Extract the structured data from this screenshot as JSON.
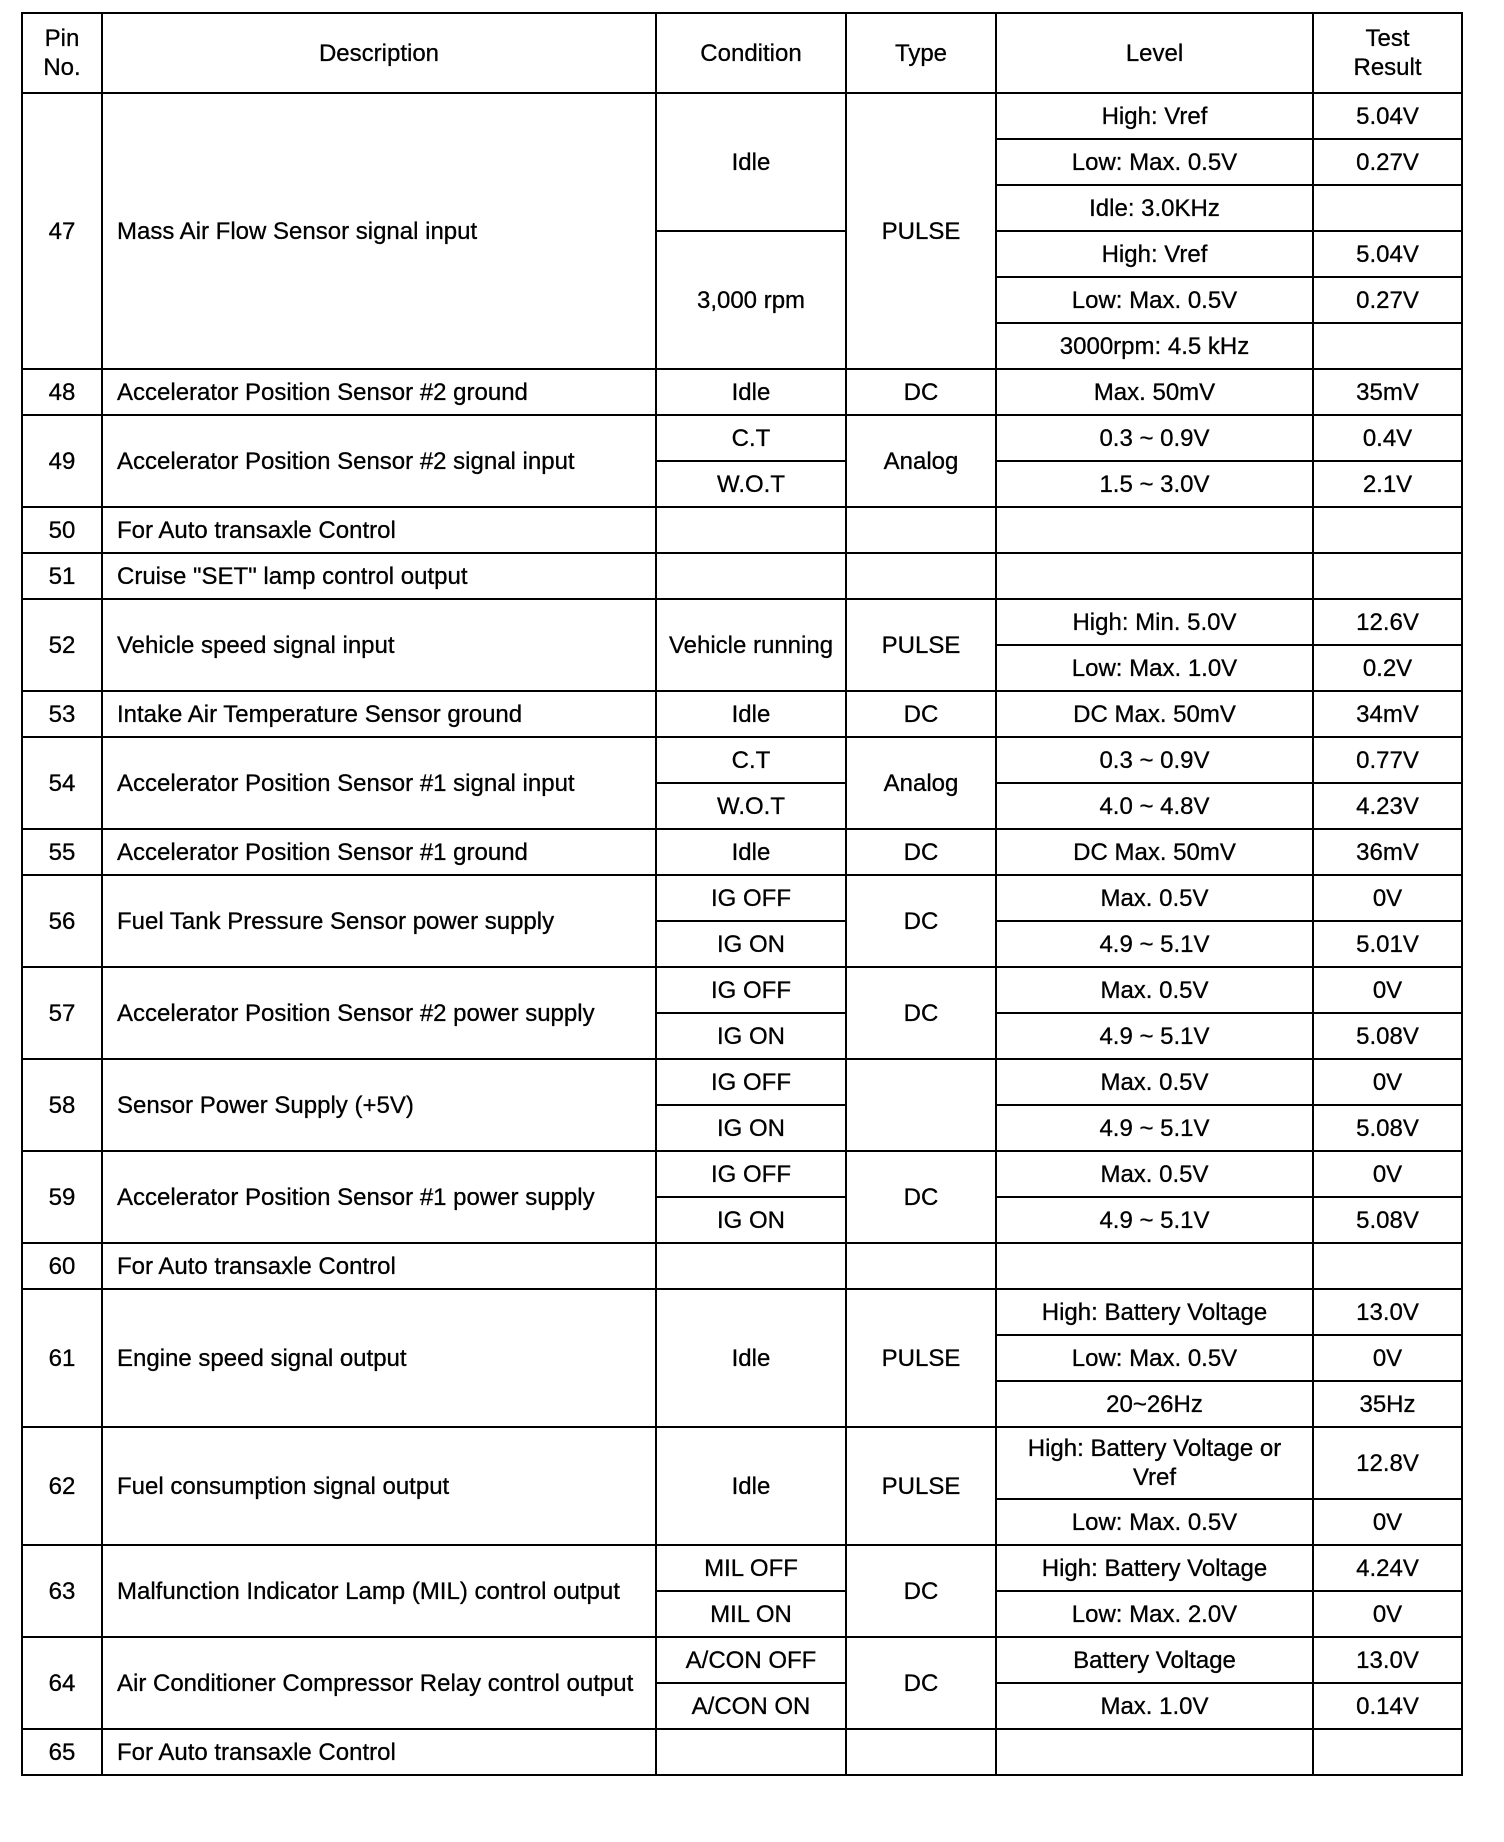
{
  "headers": {
    "pin": "Pin No.",
    "description": "Description",
    "condition": "Condition",
    "type": "Type",
    "level": "Level",
    "result": "Test Result"
  },
  "pins": [
    {
      "pin": "47",
      "description": "Mass Air Flow Sensor signal input",
      "type": "PULSE",
      "conditions": [
        {
          "text": "Idle",
          "rows": 3
        },
        {
          "text": "3,000 rpm",
          "rows": 3
        }
      ],
      "levels": [
        {
          "level": "High:  Vref",
          "result": "5.04V"
        },
        {
          "level": "Low:  Max.  0.5V",
          "result": "0.27V"
        },
        {
          "level": "Idle:  3.0KHz",
          "result": ""
        },
        {
          "level": "High:  Vref",
          "result": "5.04V"
        },
        {
          "level": "Low:  Max.  0.5V",
          "result": "0.27V"
        },
        {
          "level": "3000rpm:  4.5 kHz",
          "result": ""
        }
      ]
    },
    {
      "pin": "48",
      "description": "Accelerator Position Sensor #2 ground",
      "type": "DC",
      "conditions": [
        {
          "text": "Idle",
          "rows": 1
        }
      ],
      "levels": [
        {
          "level": "Max.  50mV",
          "result": "35mV"
        }
      ]
    },
    {
      "pin": "49",
      "description": "Accelerator Position Sensor #2 signal input",
      "type": "Analog",
      "conditions": [
        {
          "text": "C.T",
          "rows": 1
        },
        {
          "text": "W.O.T",
          "rows": 1
        }
      ],
      "levels": [
        {
          "level": "0.3 ~ 0.9V",
          "result": "0.4V"
        },
        {
          "level": "1.5 ~ 3.0V",
          "result": "2.1V"
        }
      ]
    },
    {
      "pin": "50",
      "description": "For Auto transaxle Control",
      "type": "",
      "conditions": [
        {
          "text": "",
          "rows": 1
        }
      ],
      "levels": [
        {
          "level": "",
          "result": ""
        }
      ]
    },
    {
      "pin": "51",
      "description": "Cruise \"SET\" lamp control output",
      "type": "",
      "conditions": [
        {
          "text": "",
          "rows": 1
        }
      ],
      "levels": [
        {
          "level": "",
          "result": ""
        }
      ]
    },
    {
      "pin": "52",
      "description": "Vehicle speed signal input",
      "type": "PULSE",
      "conditions": [
        {
          "text": "Vehicle running",
          "rows": 2
        }
      ],
      "levels": [
        {
          "level": "High:  Min.  5.0V",
          "result": "12.6V"
        },
        {
          "level": "Low:  Max.  1.0V",
          "result": "0.2V"
        }
      ]
    },
    {
      "pin": "53",
      "description": "Intake Air Temperature Sensor ground",
      "type": "DC",
      "conditions": [
        {
          "text": "Idle",
          "rows": 1
        }
      ],
      "levels": [
        {
          "level": "DC Max.  50mV",
          "result": "34mV"
        }
      ]
    },
    {
      "pin": "54",
      "description": "Accelerator Position Sensor #1 signal input",
      "type": "Analog",
      "conditions": [
        {
          "text": "C.T",
          "rows": 1
        },
        {
          "text": "W.O.T",
          "rows": 1
        }
      ],
      "levels": [
        {
          "level": "0.3 ~ 0.9V",
          "result": "0.77V"
        },
        {
          "level": "4.0 ~ 4.8V",
          "result": "4.23V"
        }
      ]
    },
    {
      "pin": "55",
      "description": "Accelerator Position Sensor #1 ground",
      "type": "DC",
      "conditions": [
        {
          "text": "Idle",
          "rows": 1
        }
      ],
      "levels": [
        {
          "level": "DC Max.  50mV",
          "result": "36mV"
        }
      ]
    },
    {
      "pin": "56",
      "description": "Fuel Tank Pressure Sensor power supply",
      "type": "DC",
      "conditions": [
        {
          "text": "IG OFF",
          "rows": 1
        },
        {
          "text": "IG ON",
          "rows": 1
        }
      ],
      "levels": [
        {
          "level": "Max.  0.5V",
          "result": "0V"
        },
        {
          "level": "4.9 ~ 5.1V",
          "result": "5.01V"
        }
      ]
    },
    {
      "pin": "57",
      "description": "Accelerator Position Sensor #2 power supply",
      "type": "DC",
      "conditions": [
        {
          "text": "IG OFF",
          "rows": 1
        },
        {
          "text": "IG ON",
          "rows": 1
        }
      ],
      "levels": [
        {
          "level": "Max.  0.5V",
          "result": "0V"
        },
        {
          "level": "4.9 ~ 5.1V",
          "result": "5.08V"
        }
      ]
    },
    {
      "pin": "58",
      "description": "Sensor Power Supply (+5V)",
      "type": "",
      "conditions": [
        {
          "text": "IG OFF",
          "rows": 1
        },
        {
          "text": "IG ON",
          "rows": 1
        }
      ],
      "levels": [
        {
          "level": "Max.  0.5V",
          "result": "0V"
        },
        {
          "level": "4.9 ~ 5.1V",
          "result": "5.08V"
        }
      ]
    },
    {
      "pin": "59",
      "description": "Accelerator Position Sensor #1 power supply",
      "type": "DC",
      "conditions": [
        {
          "text": "IG OFF",
          "rows": 1
        },
        {
          "text": "IG ON",
          "rows": 1
        }
      ],
      "levels": [
        {
          "level": "Max.  0.5V",
          "result": "0V"
        },
        {
          "level": "4.9 ~ 5.1V",
          "result": "5.08V"
        }
      ]
    },
    {
      "pin": "60",
      "description": "For Auto transaxle Control",
      "type": "",
      "conditions": [
        {
          "text": "",
          "rows": 1
        }
      ],
      "levels": [
        {
          "level": "",
          "result": ""
        }
      ]
    },
    {
      "pin": "61",
      "description": "Engine speed signal output",
      "type": "PULSE",
      "conditions": [
        {
          "text": "Idle",
          "rows": 3
        }
      ],
      "levels": [
        {
          "level": "High:  Battery Voltage",
          "result": "13.0V"
        },
        {
          "level": "Low:  Max.  0.5V",
          "result": "0V"
        },
        {
          "level": "20~26Hz",
          "result": "35Hz"
        }
      ]
    },
    {
      "pin": "62",
      "description": "Fuel consumption signal output",
      "type": "PULSE",
      "conditions": [
        {
          "text": "Idle",
          "rows": 2
        }
      ],
      "levels": [
        {
          "level": "High:  Battery Voltage or  Vref",
          "result": "12.8V",
          "tall": true
        },
        {
          "level": "Low:  Max.  0.5V",
          "result": "0V"
        }
      ]
    },
    {
      "pin": "63",
      "description": "Malfunction Indicator Lamp (MIL) control output",
      "type": "DC",
      "conditions": [
        {
          "text": "MIL OFF",
          "rows": 1
        },
        {
          "text": "MIL ON",
          "rows": 1
        }
      ],
      "levels": [
        {
          "level": "High:  Battery Voltage",
          "result": "4.24V"
        },
        {
          "level": "Low:  Max.  2.0V",
          "result": "0V"
        }
      ]
    },
    {
      "pin": "64",
      "description": "Air Conditioner Compressor Relay control output",
      "type": "DC",
      "conditions": [
        {
          "text": "A/CON OFF",
          "rows": 1
        },
        {
          "text": "A/CON ON",
          "rows": 1
        }
      ],
      "levels": [
        {
          "level": "Battery Voltage",
          "result": "13.0V"
        },
        {
          "level": "Max.  1.0V",
          "result": "0.14V"
        }
      ]
    },
    {
      "pin": "65",
      "description": "For Auto transaxle Control",
      "type": "",
      "conditions": [
        {
          "text": "",
          "rows": 1
        }
      ],
      "levels": [
        {
          "level": "",
          "result": ""
        }
      ]
    }
  ]
}
